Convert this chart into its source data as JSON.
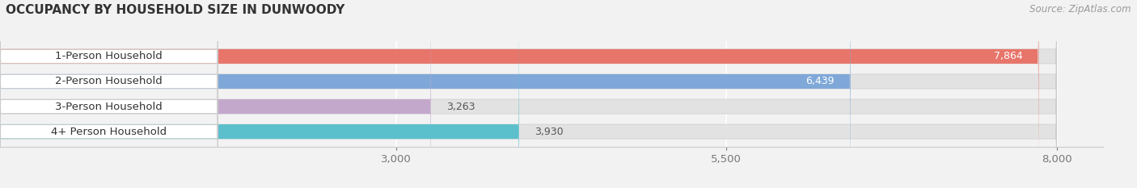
{
  "title": "OCCUPANCY BY HOUSEHOLD SIZE IN DUNWOODY",
  "source": "Source: ZipAtlas.com",
  "categories": [
    "1-Person Household",
    "2-Person Household",
    "3-Person Household",
    "4+ Person Household"
  ],
  "values": [
    7864,
    6439,
    3263,
    3930
  ],
  "bar_colors": [
    "#E8756A",
    "#7FA8D8",
    "#C4A8CC",
    "#5BBFCC"
  ],
  "xlim_min": 0,
  "xlim_max": 8350,
  "data_min": 0,
  "data_max": 8000,
  "xticks": [
    3000,
    5500,
    8000
  ],
  "bar_height": 0.58,
  "label_fontsize": 9.5,
  "value_fontsize": 9,
  "title_fontsize": 11,
  "source_fontsize": 8.5,
  "background_color": "#f2f2f2",
  "bar_bg_color": "#e2e2e2",
  "label_bg_color": "#ffffff"
}
